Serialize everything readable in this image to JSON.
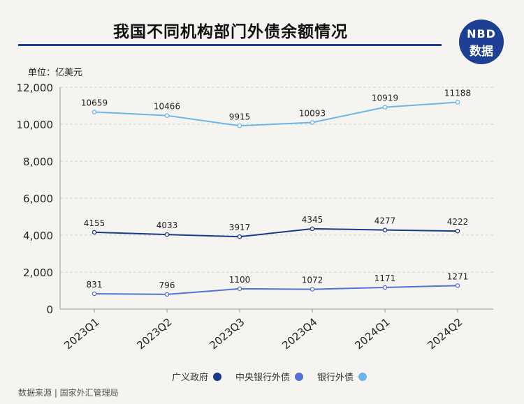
{
  "header": {
    "title": "我国不同机构部门外债余额情况",
    "badge_top": "NBD",
    "badge_bottom": "数据"
  },
  "unit_label": "单位：亿美元",
  "source_label": "数据来源 | 国家外汇管理局",
  "colors": {
    "title_rule": "#1d3f94",
    "badge": "#1d3f94",
    "background": "#f6f4f0"
  },
  "chart_data": {
    "type": "line",
    "title": "我国不同机构部门外债余额情况",
    "xlabel": "",
    "ylabel": "单位：亿美元",
    "categories": [
      "2023Q1",
      "2023Q2",
      "2023Q3",
      "2023Q4",
      "2024Q1",
      "2024Q2"
    ],
    "ylim": [
      0,
      12000
    ],
    "yticks": [
      0,
      2000,
      4000,
      6000,
      8000,
      10000,
      12000
    ],
    "ytick_labels": [
      "0",
      "2,000",
      "4,000",
      "6,000",
      "8,000",
      "10,000",
      "12,000"
    ],
    "grid": true,
    "legend_position": "bottom",
    "series": [
      {
        "name": "广义政府",
        "color": "#1b3a8c",
        "values": [
          4155,
          4033,
          3917,
          4345,
          4277,
          4222
        ]
      },
      {
        "name": "中央银行外债",
        "color": "#5672d6",
        "values": [
          831,
          796,
          1100,
          1072,
          1171,
          1271
        ]
      },
      {
        "name": "银行外债",
        "color": "#6bb6ea",
        "values": [
          10659,
          10466,
          9915,
          10093,
          10919,
          11188
        ]
      }
    ]
  }
}
